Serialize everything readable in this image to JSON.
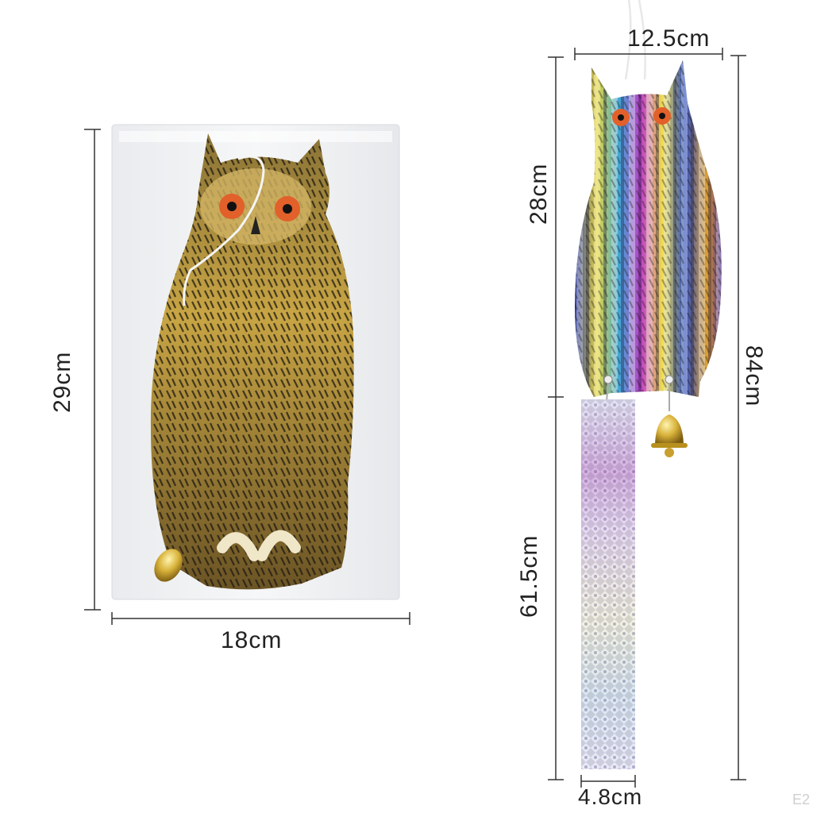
{
  "dimensions": {
    "packaged_height": "29cm",
    "packaged_width": "18cm",
    "owl_width": "12.5cm",
    "owl_height": "28cm",
    "total_length": "84cm",
    "strip_length": "61.5cm",
    "strip_width": "4.8cm"
  },
  "watermark": "E2",
  "colors": {
    "line": "#333333",
    "owl_dark": "#2b2418",
    "owl_gold": "#c9a441",
    "eye": "#e2602a",
    "bell": "#d8b23a"
  }
}
